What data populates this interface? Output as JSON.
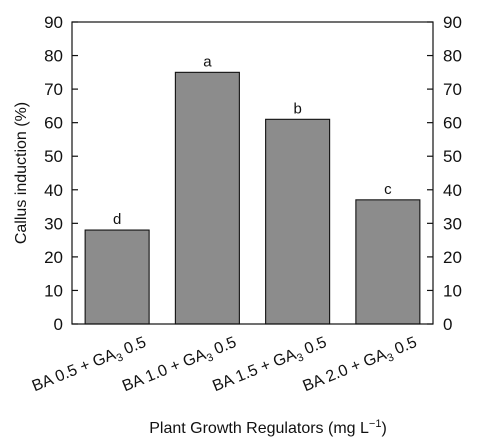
{
  "chart_data": {
    "type": "bar",
    "ylabel": "Callus induction (%)",
    "xlabel_main": "Plant Growth Regulators (mg L",
    "xlabel_sup": "−1",
    "xlabel_close": ")",
    "ylim": [
      0,
      90
    ],
    "yticks": [
      0,
      10,
      20,
      30,
      40,
      50,
      60,
      70,
      80,
      90
    ],
    "right_axis_ticks": true,
    "grid": false,
    "bar_color": "#8c8c8c",
    "categories": [
      {
        "pre": "BA 0.5 + GA",
        "sub": "3",
        "post": " 0.5"
      },
      {
        "pre": "BA 1.0 + GA",
        "sub": "3",
        "post": " 0.5"
      },
      {
        "pre": "BA 1.5 + GA",
        "sub": "3",
        "post": " 0.5"
      },
      {
        "pre": "BA 2.0 + GA",
        "sub": "3",
        "post": " 0.5"
      }
    ],
    "values": [
      28,
      75,
      61,
      37
    ],
    "bar_labels": [
      "d",
      "a",
      "b",
      "c"
    ]
  }
}
